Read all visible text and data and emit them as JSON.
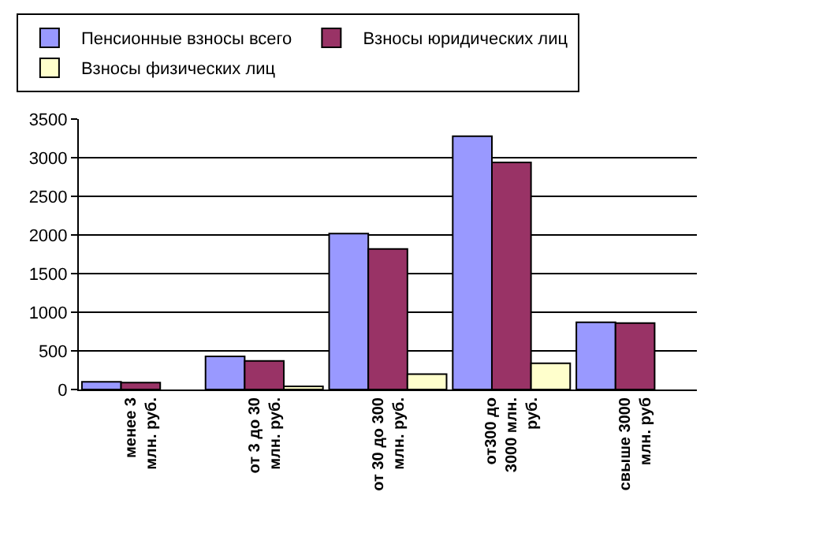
{
  "chart_data": {
    "type": "bar",
    "categories": [
      "менее 3\nмлн. руб.",
      "от 3 до 30\nмлн. руб.",
      "от 30 до 300\nмлн. руб.",
      "от300 до\n3000 млн.\nруб.",
      "свыше 3000\nмлн. руб"
    ],
    "series": [
      {
        "name": "Пенсионные взносы всего",
        "color": "#9999ff",
        "values": [
          100,
          430,
          2020,
          3280,
          870
        ]
      },
      {
        "name": "Взносы юридических лиц",
        "color": "#993366",
        "values": [
          90,
          370,
          1820,
          2940,
          860
        ]
      },
      {
        "name": "Взносы физических лиц",
        "color": "#ffffcc",
        "values": [
          null,
          40,
          200,
          340,
          null
        ]
      }
    ],
    "ylim": [
      0,
      3500
    ],
    "yticks": [
      0,
      500,
      1000,
      1500,
      2000,
      2500,
      3000,
      3500
    ],
    "grid": "y",
    "legend": "top"
  }
}
